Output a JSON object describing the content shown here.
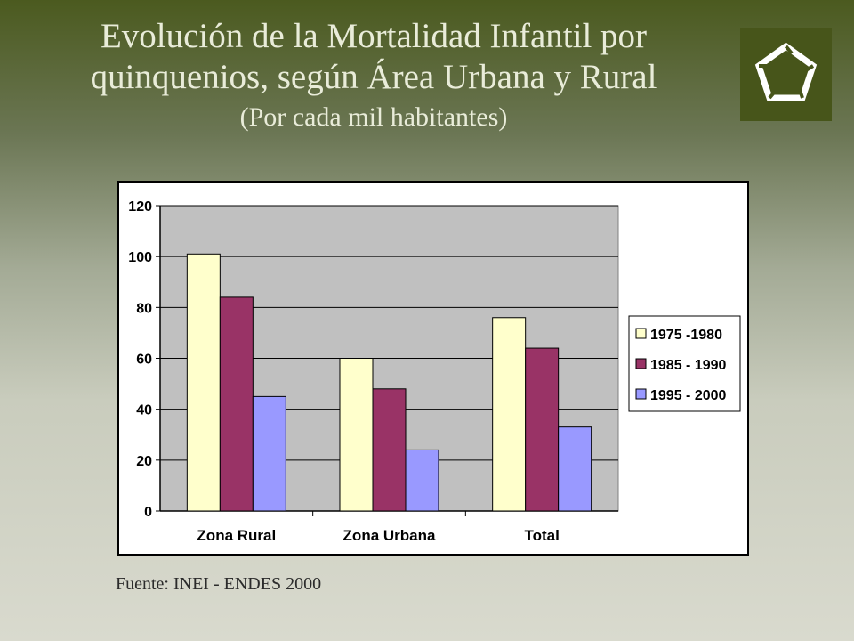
{
  "header": {
    "title_line1": "Evolución de la Mortalidad Infantil por",
    "title_line2": "quinquenios, según Área Urbana y Rural",
    "subtitle": "(Por cada mil habitantes)"
  },
  "footer": {
    "source": "Fuente: INEI - ENDES 2000"
  },
  "logo": {
    "icon": "pentagon-logo-icon",
    "bg_color": "#47551a"
  },
  "chart_data": {
    "type": "bar",
    "categories": [
      "Zona Rural",
      "Zona Urbana",
      "Total"
    ],
    "series": [
      {
        "name": "1975 -1980",
        "values": [
          101,
          60,
          76
        ],
        "color": "#ffffcc"
      },
      {
        "name": "1985 - 1990",
        "values": [
          84,
          48,
          64
        ],
        "color": "#993366"
      },
      {
        "name": "1995 - 2000",
        "values": [
          45,
          24,
          33
        ],
        "color": "#9999ff"
      }
    ],
    "yticks": [
      0,
      20,
      40,
      60,
      80,
      100,
      120
    ],
    "ylim": [
      0,
      120
    ],
    "grid": true,
    "plot_bg": "#c0c0c0",
    "legend_position": "right"
  }
}
